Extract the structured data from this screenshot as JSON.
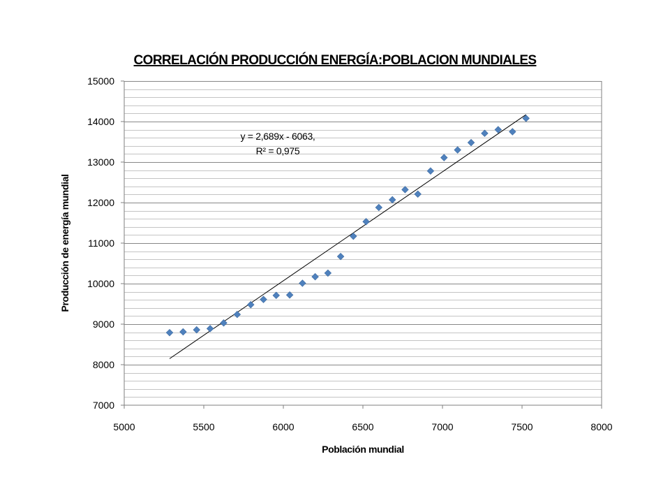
{
  "chart_data": {
    "type": "scatter",
    "title": "CORRELACIÓN PRODUCCIÓN ENERGÍA:POBLACION MUNDIALES",
    "xlabel": "Población mundial",
    "ylabel": "Producción de energía mundial",
    "xlim": [
      5000,
      8000
    ],
    "ylim": [
      7000,
      15000
    ],
    "x_ticks": [
      "5000",
      "5500",
      "6000",
      "6500",
      "7000",
      "7500",
      "8000"
    ],
    "y_ticks": [
      "7000",
      "8000",
      "9000",
      "10000",
      "11000",
      "12000",
      "13000",
      "14000",
      "15000"
    ],
    "y_minor_step": 200,
    "grid": true,
    "marker": "diamond",
    "marker_color": "#4f81bd",
    "trendline": {
      "slope": 2.689,
      "intercept": -6063,
      "x_range": [
        5285,
        7525
      ],
      "equation_line1": "y = 2,689x - 6063,",
      "equation_line2": "R² = 0,975"
    },
    "series": [
      {
        "points": [
          [
            5285,
            8790
          ],
          [
            5370,
            8810
          ],
          [
            5455,
            8860
          ],
          [
            5540,
            8890
          ],
          [
            5625,
            9030
          ],
          [
            5710,
            9240
          ],
          [
            5795,
            9480
          ],
          [
            5875,
            9610
          ],
          [
            5955,
            9710
          ],
          [
            6040,
            9720
          ],
          [
            6120,
            10010
          ],
          [
            6200,
            10170
          ],
          [
            6280,
            10260
          ],
          [
            6360,
            10670
          ],
          [
            6440,
            11170
          ],
          [
            6520,
            11530
          ],
          [
            6600,
            11880
          ],
          [
            6685,
            12070
          ],
          [
            6765,
            12320
          ],
          [
            6845,
            12210
          ],
          [
            6925,
            12780
          ],
          [
            7010,
            13110
          ],
          [
            7095,
            13300
          ],
          [
            7180,
            13480
          ],
          [
            7265,
            13710
          ],
          [
            7350,
            13800
          ],
          [
            7440,
            13750
          ],
          [
            7525,
            14080
          ]
        ]
      }
    ]
  }
}
